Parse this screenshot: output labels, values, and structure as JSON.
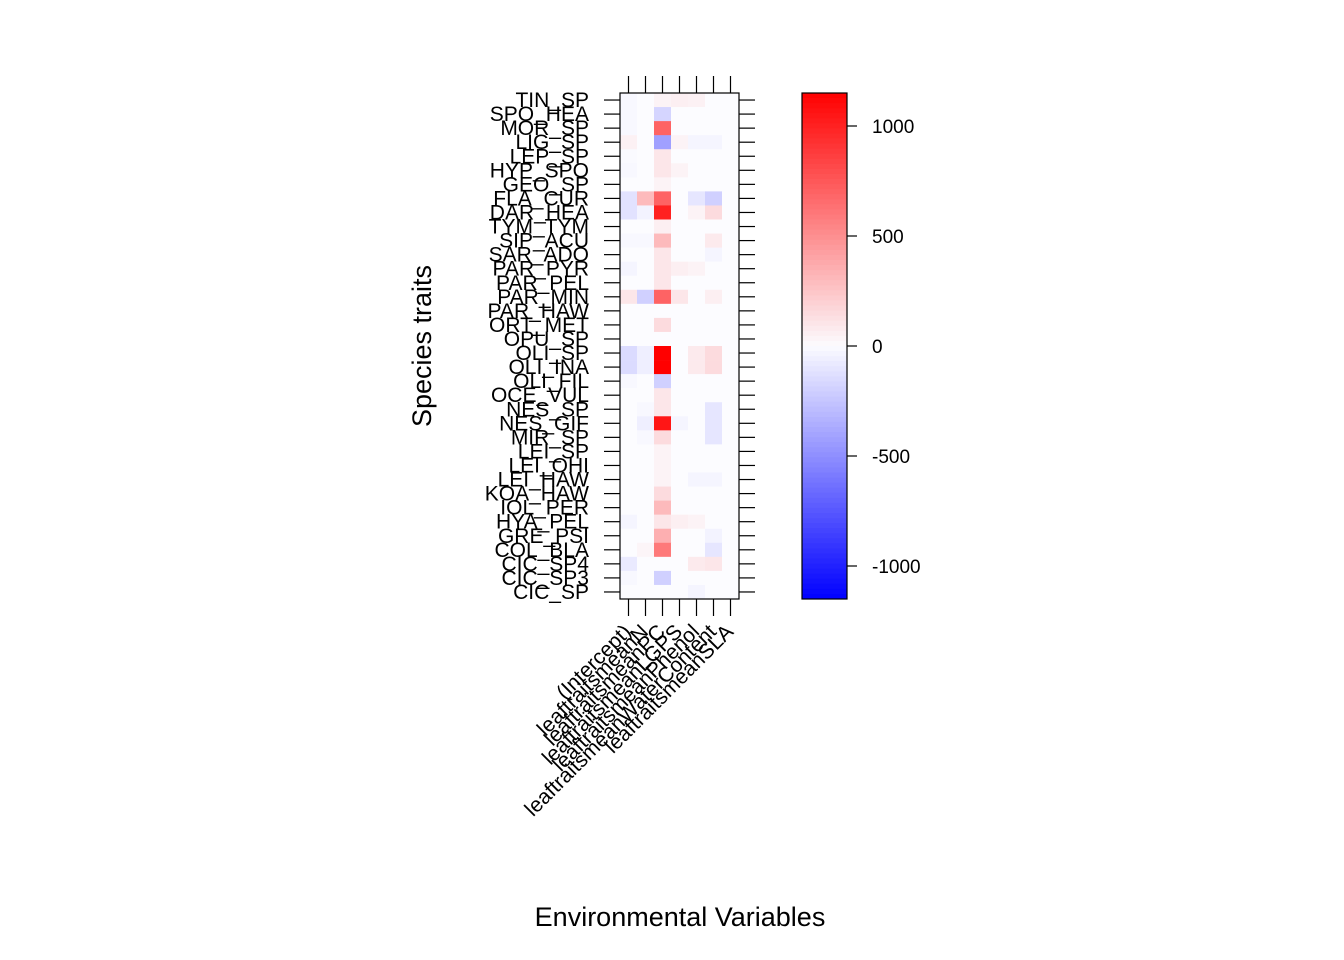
{
  "chart_data": {
    "type": "heatmap",
    "xlabel": "Environmental Variables",
    "ylabel": "Species traits",
    "x_categories": [
      "(Intercept)",
      "leaftraitsmeanN",
      "leaftraitsmeanPC",
      "leaftraitsmeanLGPS",
      "leaftraitsmeanPhenol",
      "leaftraitsmeanWaterContent",
      "leaftraitsmeanSLA"
    ],
    "y_categories": [
      "TIN_SP",
      "SPO_HEA",
      "MOR_SP",
      "LIG_SP",
      "LEP_SP",
      "HYP_SPO",
      "GEO_SP",
      "FLA_CUR",
      "DAR_HEA",
      "TYM_TYM",
      "SIP_ACU",
      "SAR_ADO",
      "PAR_PYR",
      "PAR_PEL",
      "PAR_MIN",
      "PAR_HAW",
      "ORT_MET",
      "OPU_SP",
      "OLI_SP",
      "OLI_INA",
      "OLI_FIL",
      "OCE_VUL",
      "NES_SP",
      "NES_GIF",
      "MIR_SP",
      "LEI_SP",
      "LEI_OHI",
      "LEI_HAW",
      "KOA_HAW",
      "IOL_PER",
      "HYA_PEL",
      "GRE_PSI",
      "COL_BLA",
      "CIC_SP4",
      "CIC_SP3",
      "CIC_SP"
    ],
    "values": [
      [
        -20,
        0,
        40,
        60,
        50,
        0,
        0
      ],
      [
        -20,
        0,
        -180,
        0,
        0,
        0,
        0
      ],
      [
        -20,
        0,
        700,
        0,
        0,
        0,
        0
      ],
      [
        50,
        0,
        -420,
        40,
        -30,
        -30,
        0
      ],
      [
        -10,
        0,
        100,
        0,
        0,
        0,
        0
      ],
      [
        -20,
        0,
        100,
        40,
        0,
        0,
        0
      ],
      [
        0,
        0,
        40,
        0,
        0,
        0,
        0
      ],
      [
        -120,
        300,
        700,
        0,
        -100,
        -200,
        0
      ],
      [
        -120,
        -40,
        1000,
        0,
        40,
        150,
        0
      ],
      [
        0,
        0,
        60,
        0,
        0,
        0,
        0
      ],
      [
        -20,
        -20,
        300,
        0,
        0,
        80,
        0
      ],
      [
        0,
        0,
        100,
        0,
        0,
        -30,
        0
      ],
      [
        -30,
        0,
        100,
        60,
        40,
        0,
        0
      ],
      [
        0,
        0,
        100,
        0,
        0,
        0,
        0
      ],
      [
        100,
        -200,
        700,
        100,
        0,
        60,
        0
      ],
      [
        0,
        0,
        0,
        0,
        0,
        0,
        0
      ],
      [
        0,
        0,
        150,
        0,
        0,
        0,
        0
      ],
      [
        0,
        0,
        0,
        0,
        0,
        0,
        0
      ],
      [
        -150,
        -60,
        1150,
        0,
        80,
        150,
        0
      ],
      [
        -150,
        -60,
        1150,
        0,
        80,
        150,
        0
      ],
      [
        -20,
        0,
        -200,
        0,
        0,
        0,
        0
      ],
      [
        0,
        0,
        100,
        0,
        0,
        0,
        0
      ],
      [
        0,
        -20,
        100,
        0,
        0,
        -100,
        0
      ],
      [
        0,
        -60,
        1050,
        -30,
        0,
        -100,
        0
      ],
      [
        0,
        -20,
        150,
        0,
        0,
        -100,
        0
      ],
      [
        0,
        0,
        40,
        0,
        0,
        0,
        0
      ],
      [
        0,
        0,
        40,
        0,
        0,
        0,
        0
      ],
      [
        0,
        0,
        40,
        0,
        -30,
        -30,
        0
      ],
      [
        0,
        0,
        150,
        0,
        0,
        0,
        0
      ],
      [
        0,
        0,
        300,
        0,
        0,
        0,
        0
      ],
      [
        -30,
        0,
        100,
        60,
        40,
        0,
        0
      ],
      [
        0,
        0,
        350,
        0,
        0,
        -40,
        0
      ],
      [
        0,
        30,
        600,
        0,
        0,
        -100,
        0
      ],
      [
        -80,
        0,
        0,
        0,
        80,
        100,
        0
      ],
      [
        -20,
        0,
        -200,
        0,
        0,
        0,
        0
      ],
      [
        0,
        0,
        0,
        0,
        -30,
        0,
        0
      ]
    ],
    "colorbar": {
      "range": [
        -1150,
        1150
      ],
      "ticks": [
        -1000,
        -500,
        0,
        500,
        1000
      ],
      "tick_labels": [
        "-1000",
        "-500",
        "0",
        "500",
        "1000"
      ],
      "low_color": "#0000ff",
      "mid_color": "#ffffff",
      "high_color": "#ff0000"
    }
  }
}
